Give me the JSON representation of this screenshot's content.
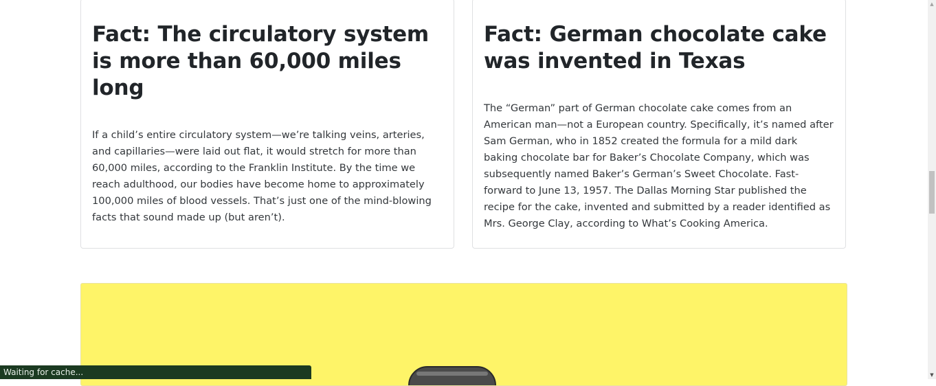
{
  "cards": [
    {
      "title": "Fact: The circulatory system is more than 60,000 miles long",
      "body": "If a child’s entire circulatory system—we’re talking veins, arteries, and capillaries—were laid out flat, it would stretch for more than 60,000 miles, according to the Franklin Institute. By the time we reach adulthood, our bodies have become home to approximately 100,000 miles of blood vessels. That’s just one of the mind-blowing facts that sound made up (but aren’t)."
    },
    {
      "title": "Fact: German chocolate cake was invented in Texas",
      "body": "The “German” part of German chocolate cake comes from an American man—not a European country. Specifically, it’s named after Sam German, who in 1852 created the formula for a mild dark baking chocolate bar for Baker’s Chocolate Company, which was subsequently named Baker’s German’s Sweet Chocolate. Fast-forward to June 13, 1957. The Dallas Morning Star published the recipe for the cake, invented and submitted by a reader identified as Mrs. George Clay, according to What’s Cooking America."
    }
  ],
  "banner": {
    "background": "#fef468"
  },
  "status_bar": {
    "text": "Waiting for cache..."
  },
  "scrollbar": {
    "up_icon": "▲",
    "down_icon": "▼"
  }
}
